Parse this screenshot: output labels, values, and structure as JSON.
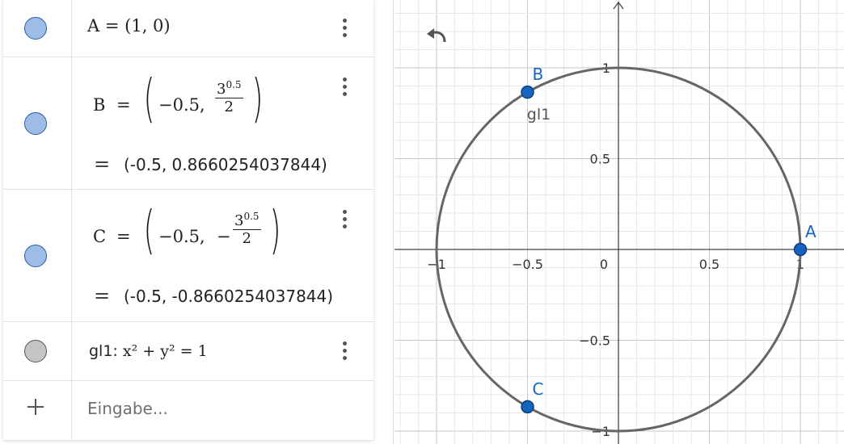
{
  "algebra": {
    "rows": [
      {
        "label": "A",
        "eq": "=",
        "value": "(1, 0)"
      },
      {
        "label": "B",
        "eq": "=",
        "x": "−0.5,",
        "num_base": "3",
        "num_exp": "0.5",
        "den": "2",
        "result_eq": "=",
        "result": "(-0.5, 0.8660254037844)"
      },
      {
        "label": "C",
        "eq": "=",
        "x": "−0.5,",
        "sign": "−",
        "num_base": "3",
        "num_exp": "0.5",
        "den": "2",
        "result_eq": "=",
        "result": "(-0.5, -0.8660254037844)"
      },
      {
        "label": "gl1:",
        "equation": "x² + y² = 1"
      }
    ],
    "input_placeholder": "Eingabe..."
  },
  "graphics": {
    "x_ticks": [
      "−1",
      "−0.5",
      "0",
      "0.5",
      "1"
    ],
    "y_ticks": [
      "1",
      "0.5",
      "−0.5",
      "−1"
    ],
    "points": [
      {
        "label": "A",
        "x": 1,
        "y": 0
      },
      {
        "label": "B",
        "x": -0.5,
        "y": 0.8660254037844
      },
      {
        "label": "C",
        "x": -0.5,
        "y": -0.8660254037844
      }
    ],
    "curve": {
      "label": "gl1",
      "type": "circle",
      "cx": 0,
      "cy": 0,
      "r": 1
    },
    "colors": {
      "point": "#1565c0",
      "point_label": "#1565c0",
      "curve": "#666666",
      "grid_major": "#c6c6c6",
      "grid_minor": "#e8e8e8"
    }
  },
  "icons": {
    "undo": "undo-icon",
    "more": "more-vert-icon",
    "add": "plus-icon",
    "visibility": "visibility-toggle-icon"
  }
}
